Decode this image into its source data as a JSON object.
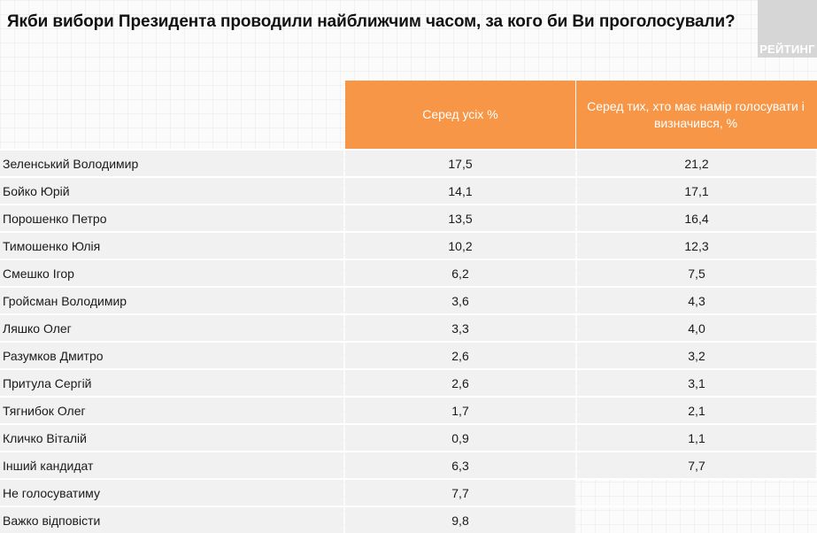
{
  "title": "Якби вибори Президента проводили найближчим часом, за кого би Ви проголосували?",
  "brand": "РЕЙТИНГ",
  "colors": {
    "header_bg": "#f79646",
    "header_text": "#ffffff",
    "cell_bg": "#f1f1f1",
    "brand_bg": "#d6d6d6"
  },
  "table": {
    "columns": [
      "",
      "Серед усіх %",
      "Серед тих, хто має намір голосувати і визначився, %"
    ],
    "rows": [
      {
        "name": "Зеленський Володимир",
        "all": "17,5",
        "decided": "21,2"
      },
      {
        "name": "Бойко Юрій",
        "all": "14,1",
        "decided": "17,1"
      },
      {
        "name": "Порошенко Петро",
        "all": "13,5",
        "decided": "16,4"
      },
      {
        "name": "Тимошенко Юлія",
        "all": "10,2",
        "decided": "12,3"
      },
      {
        "name": "Смешко Ігор",
        "all": "6,2",
        "decided": "7,5"
      },
      {
        "name": "Гройсман Володимир",
        "all": "3,6",
        "decided": "4,3"
      },
      {
        "name": "Ляшко Олег",
        "all": "3,3",
        "decided": "4,0"
      },
      {
        "name": "Разумков Дмитро",
        "all": "2,6",
        "decided": "3,2"
      },
      {
        "name": "Притула Сергій",
        "all": "2,6",
        "decided": "3,1"
      },
      {
        "name": "Тягнибок Олег",
        "all": "1,7",
        "decided": "2,1"
      },
      {
        "name": "Кличко Віталій",
        "all": "0,9",
        "decided": "1,1"
      },
      {
        "name": "Інший кандидат",
        "all": "6,3",
        "decided": "7,7"
      },
      {
        "name": "Не голосуватиму",
        "all": "7,7",
        "decided": null
      },
      {
        "name": "Важко відповісти",
        "all": "9,8",
        "decided": null
      }
    ]
  }
}
